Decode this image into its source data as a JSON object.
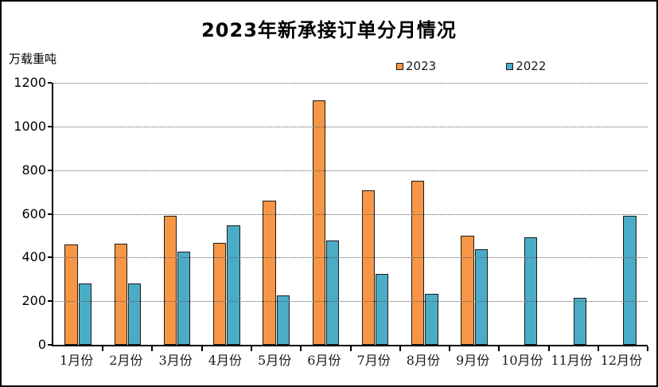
{
  "title": "2023年新承接订单分月情况",
  "y_axis_unit": "万载重吨",
  "colors": {
    "series_2023": "#F79646",
    "series_2022": "#4BACC6",
    "bar_border": "#1b1b1b",
    "axis": "#000000",
    "gridline": "#595959"
  },
  "chart_data": {
    "type": "bar",
    "title": "2023年新承接订单分月情况",
    "xlabel": "",
    "ylabel": "万载重吨",
    "categories": [
      "1月份",
      "2月份",
      "3月份",
      "4月份",
      "5月份",
      "6月份",
      "7月份",
      "8月份",
      "9月份",
      "10月份",
      "11月份",
      "12月份"
    ],
    "series": [
      {
        "name": "2023",
        "color": "#F79646",
        "values": [
          460,
          463,
          591,
          467,
          660,
          1121,
          706,
          752,
          501,
          null,
          null,
          null
        ]
      },
      {
        "name": "2022",
        "color": "#4BACC6",
        "values": [
          281,
          282,
          427,
          547,
          227,
          477,
          325,
          233,
          437,
          492,
          217,
          590
        ]
      }
    ],
    "ylim": [
      0,
      1200
    ],
    "ytick_step": 200,
    "grid": true,
    "legend_position": "top-center"
  }
}
